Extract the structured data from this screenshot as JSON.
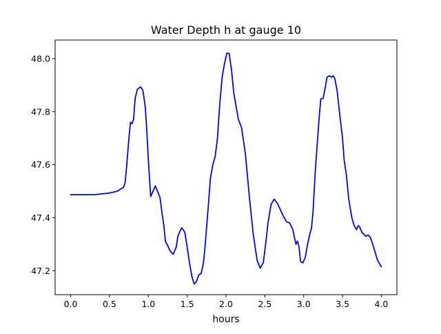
{
  "chart_data": {
    "type": "line",
    "title": "Water Depth h at gauge 10",
    "xlabel": "hours",
    "ylabel": "",
    "xlim": [
      -0.2,
      4.2
    ],
    "ylim": [
      47.11,
      48.07
    ],
    "xticks": [
      0.0,
      0.5,
      1.0,
      1.5,
      2.0,
      2.5,
      3.0,
      3.5,
      4.0
    ],
    "xtick_labels": [
      "0.0",
      "0.5",
      "1.0",
      "1.5",
      "2.0",
      "2.5",
      "3.0",
      "3.5",
      "4.0"
    ],
    "yticks": [
      47.2,
      47.4,
      47.6,
      47.8,
      48.0
    ],
    "ytick_labels": [
      "47.2",
      "47.4",
      "47.6",
      "47.8",
      "48.0"
    ],
    "grid": false,
    "line_color": "#0000ff",
    "series": [
      {
        "x": [
          0.0,
          0.3,
          0.5,
          0.6,
          0.68,
          0.7,
          0.72,
          0.75,
          0.77,
          0.79,
          0.81,
          0.83,
          0.86,
          0.9,
          0.93,
          0.96,
          0.98,
          1.0,
          1.03,
          1.06,
          1.09,
          1.12,
          1.15,
          1.18,
          1.2,
          1.22,
          1.25,
          1.28,
          1.32,
          1.36,
          1.38,
          1.4,
          1.43,
          1.47,
          1.5,
          1.53,
          1.56,
          1.59,
          1.62,
          1.65,
          1.68,
          1.71,
          1.73,
          1.76,
          1.8,
          1.83,
          1.86,
          1.89,
          1.92,
          1.95,
          1.98,
          2.01,
          2.04,
          2.07,
          2.1,
          2.13,
          2.16,
          2.2,
          2.25,
          2.3,
          2.35,
          2.4,
          2.44,
          2.48,
          2.51,
          2.54,
          2.58,
          2.62,
          2.66,
          2.7,
          2.74,
          2.78,
          2.82,
          2.86,
          2.9,
          2.92,
          2.94,
          2.96,
          2.99,
          3.02,
          3.05,
          3.08,
          3.1,
          3.12,
          3.15,
          3.18,
          3.2,
          3.22,
          3.25,
          3.28,
          3.3,
          3.33,
          3.36,
          3.38,
          3.4,
          3.43,
          3.46,
          3.5,
          3.52,
          3.55,
          3.58,
          3.62,
          3.65,
          3.68,
          3.7,
          3.72,
          3.75,
          3.8,
          3.83,
          3.86,
          3.9,
          3.95,
          4.0
        ],
        "y": [
          47.487,
          47.487,
          47.493,
          47.5,
          47.515,
          47.53,
          47.59,
          47.7,
          47.76,
          47.755,
          47.77,
          47.85,
          47.885,
          47.893,
          47.88,
          47.82,
          47.73,
          47.62,
          47.48,
          47.5,
          47.52,
          47.498,
          47.477,
          47.41,
          47.37,
          47.31,
          47.295,
          47.275,
          47.262,
          47.29,
          47.33,
          47.345,
          47.362,
          47.345,
          47.29,
          47.23,
          47.18,
          47.15,
          47.16,
          47.185,
          47.19,
          47.23,
          47.29,
          47.4,
          47.55,
          47.6,
          47.63,
          47.7,
          47.83,
          47.93,
          47.98,
          48.02,
          48.02,
          47.96,
          47.87,
          47.82,
          47.77,
          47.74,
          47.64,
          47.48,
          47.34,
          47.24,
          47.21,
          47.23,
          47.3,
          47.38,
          47.45,
          47.47,
          47.455,
          47.43,
          47.405,
          47.385,
          47.38,
          47.355,
          47.3,
          47.312,
          47.29,
          47.235,
          47.23,
          47.25,
          47.3,
          47.34,
          47.36,
          47.42,
          47.58,
          47.7,
          47.78,
          47.848,
          47.85,
          47.895,
          47.93,
          47.935,
          47.93,
          47.935,
          47.925,
          47.88,
          47.8,
          47.7,
          47.62,
          47.56,
          47.47,
          47.4,
          47.37,
          47.355,
          47.37,
          47.365,
          47.345,
          47.33,
          47.335,
          47.325,
          47.29,
          47.24,
          47.215
        ]
      }
    ]
  }
}
